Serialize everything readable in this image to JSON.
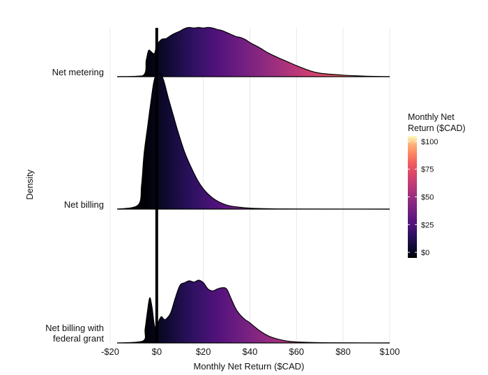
{
  "chart_data": {
    "type": "ridgeline",
    "xlabel": "Monthly Net Return ($CAD)",
    "ylabel": "Density",
    "xlim": [
      -20,
      100
    ],
    "x_ticks": [
      -20,
      0,
      20,
      40,
      60,
      80,
      100
    ],
    "x_tick_labels": [
      "-$20",
      "$0",
      "$20",
      "$40",
      "$60",
      "$80",
      "$100"
    ],
    "reference_line_x": 0,
    "legend": {
      "title_line1": "Monthly Net",
      "title_line2": "Return ($CAD)",
      "range": [
        -5,
        105
      ],
      "ticks": [
        0,
        25,
        50,
        75,
        100
      ],
      "tick_labels": [
        "$0",
        "$25",
        "$50",
        "$75",
        "$100"
      ]
    },
    "series": [
      {
        "name": "Net metering",
        "label_lines": [
          "Net metering"
        ],
        "x": [
          -17,
          -6,
          -4.5,
          -3.5,
          -2.5,
          -1,
          0,
          2,
          4,
          6,
          8,
          10,
          12,
          14,
          16,
          18,
          20,
          22,
          24,
          26,
          28,
          30,
          32,
          34,
          36,
          38,
          40,
          44,
          48,
          52,
          56,
          60,
          65,
          70,
          80,
          90,
          100
        ],
        "density": [
          0,
          0.02,
          0.33,
          0.52,
          0.5,
          0.46,
          0.62,
          0.74,
          0.76,
          0.82,
          0.87,
          0.91,
          0.96,
          0.98,
          0.97,
          0.98,
          0.97,
          0.98,
          0.97,
          0.94,
          0.92,
          0.88,
          0.84,
          0.8,
          0.78,
          0.74,
          0.68,
          0.58,
          0.47,
          0.38,
          0.3,
          0.22,
          0.13,
          0.07,
          0.03,
          0.01,
          0
        ]
      },
      {
        "name": "Net billing",
        "label_lines": [
          "Net billing"
        ],
        "x": [
          -17,
          -8,
          -6.5,
          -5.5,
          -4,
          -2,
          -1,
          0,
          1.5,
          3,
          5,
          7,
          9,
          12,
          15,
          18,
          21,
          25,
          30,
          35,
          40,
          50,
          60,
          100
        ],
        "density": [
          0,
          0.03,
          0.18,
          0.4,
          0.6,
          0.86,
          0.96,
          0.99,
          1.0,
          0.95,
          0.82,
          0.7,
          0.58,
          0.42,
          0.3,
          0.2,
          0.13,
          0.07,
          0.03,
          0.015,
          0.007,
          0.002,
          0.001,
          0
        ]
      },
      {
        "name": "Net billing with federal grant",
        "label_lines": [
          "Net billing with",
          "federal grant"
        ],
        "x": [
          -17,
          -6,
          -5,
          -4,
          -3,
          -2,
          -1,
          0,
          1,
          2,
          3,
          4,
          6,
          8,
          10,
          12,
          14,
          16,
          18,
          20,
          22,
          24,
          26,
          28,
          30,
          32,
          34,
          36,
          38,
          40,
          44,
          48,
          52,
          56,
          60,
          70,
          80,
          100
        ],
        "density": [
          0,
          0.03,
          0.22,
          0.5,
          0.72,
          0.56,
          0.28,
          0.25,
          0.36,
          0.42,
          0.38,
          0.38,
          0.48,
          0.72,
          0.92,
          0.96,
          0.99,
          0.97,
          1.0,
          0.96,
          0.86,
          0.83,
          0.86,
          0.88,
          0.86,
          0.7,
          0.54,
          0.44,
          0.37,
          0.32,
          0.2,
          0.11,
          0.06,
          0.03,
          0.015,
          0.005,
          0.002,
          0
        ]
      }
    ]
  }
}
